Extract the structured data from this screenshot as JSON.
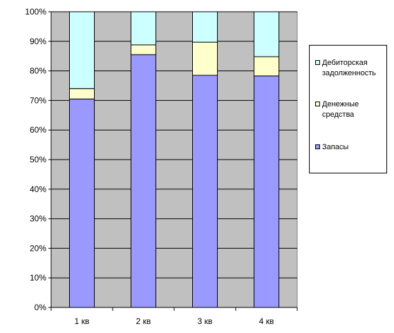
{
  "chart_data": {
    "type": "bar",
    "stacked": true,
    "percent": true,
    "categories": [
      "1 кв",
      "2 кв",
      "3 кв",
      "4 кв"
    ],
    "series": [
      {
        "name": "Запасы",
        "color": "#9999FF",
        "values": [
          70.5,
          85.5,
          78.5,
          78.3
        ]
      },
      {
        "name": "Денежные средства",
        "color": "#FFFFCC",
        "values": [
          3.5,
          3.3,
          11.2,
          6.5
        ]
      },
      {
        "name": "Дебиторская задолженность",
        "color": "#CCFFFF",
        "values": [
          26.0,
          11.2,
          10.3,
          15.2
        ]
      }
    ],
    "yticks": [
      "0%",
      "10%",
      "20%",
      "30%",
      "40%",
      "50%",
      "60%",
      "70%",
      "80%",
      "90%",
      "100%"
    ],
    "ylim": [
      0,
      100
    ],
    "grid": true,
    "plot_background": "#C0C0C0",
    "legend_position": "right",
    "legend": {
      "items": [
        {
          "lines": [
            "Дебиторская",
            "задолженность"
          ],
          "color": "#CCFFFF"
        },
        {
          "lines": [
            "Денежные",
            "средства"
          ],
          "color": "#FFFFCC"
        },
        {
          "lines": [
            "Запасы"
          ],
          "color": "#9999FF"
        }
      ]
    }
  }
}
